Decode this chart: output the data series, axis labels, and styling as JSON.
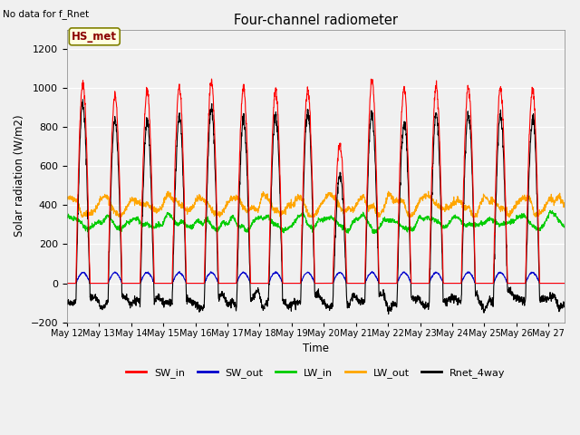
{
  "title": "Four-channel radiometer",
  "top_left_text": "No data for f_Rnet",
  "annotation_box": "HS_met",
  "ylabel": "Solar radiation (W/m2)",
  "xlabel": "Time",
  "ylim": [
    -200,
    1300
  ],
  "yticks": [
    -200,
    0,
    200,
    400,
    600,
    800,
    1000,
    1200
  ],
  "n_days": 15,
  "xtick_labels": [
    "May 12",
    "May 13",
    "May 14",
    "May 15",
    "May 16",
    "May 17",
    "May 18",
    "May 19",
    "May 20",
    "May 21",
    "May 22",
    "May 23",
    "May 24",
    "May 25",
    "May 26",
    "May 27"
  ],
  "figsize": [
    6.4,
    4.8
  ],
  "dpi": 100,
  "fig_bg": "#f0f0f0",
  "ax_bg": "#f0f0f0",
  "SW_in_color": "#ff0000",
  "SW_out_color": "#0000cc",
  "LW_in_color": "#00cc00",
  "LW_out_color": "#ffa500",
  "Rnet_color": "#000000",
  "legend_labels": [
    "SW_in",
    "SW_out",
    "LW_in",
    "LW_out",
    "Rnet_4way"
  ],
  "legend_colors": [
    "#ff0000",
    "#0000cc",
    "#00cc00",
    "#ffa500",
    "#000000"
  ]
}
